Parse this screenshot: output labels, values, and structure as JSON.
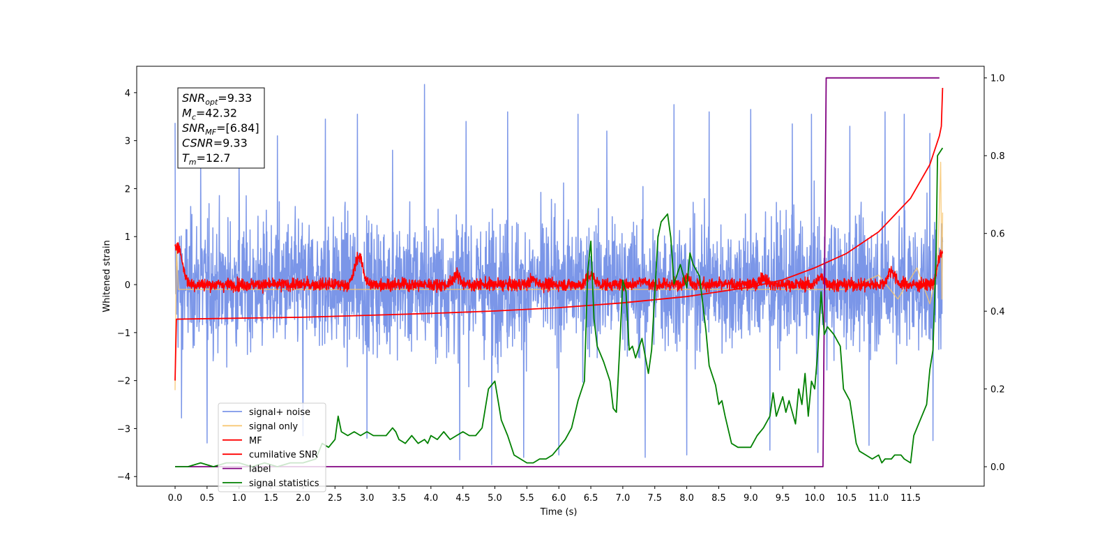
{
  "chart_data": {
    "type": "line",
    "xlabel": "Time (s)",
    "ylabel": "Whitened strain",
    "xlim": [
      -0.6,
      12.65
    ],
    "ylim": [
      -4.2,
      4.55
    ],
    "y2lim": [
      -0.05,
      1.03
    ],
    "x_ticks": [
      "0.0",
      "0.5",
      "1.0",
      "1.5",
      "2.0",
      "2.5",
      "3.0",
      "3.5",
      "4.0",
      "4.5",
      "5.0",
      "5.5",
      "6.0",
      "6.5",
      "7.0",
      "7.5",
      "8.0",
      "8.5",
      "9.0",
      "9.5",
      "10.0",
      "10.5",
      "11.0",
      "11.5"
    ],
    "x_tick_values": [
      0.0,
      0.5,
      1.0,
      1.5,
      2.0,
      2.5,
      3.0,
      3.5,
      4.0,
      4.5,
      5.0,
      5.5,
      6.0,
      6.5,
      7.0,
      7.5,
      8.0,
      8.5,
      9.0,
      9.5,
      10.0,
      10.5,
      11.0,
      11.5
    ],
    "y_ticks": [
      "4",
      "3",
      "2",
      "1",
      "0",
      "−1",
      "−2",
      "−3",
      "−4"
    ],
    "y_tick_values": [
      4,
      3,
      2,
      1,
      0,
      -1,
      -2,
      -3,
      -4
    ],
    "y2_ticks": [
      "1.0",
      "0.8",
      "0.6",
      "0.4",
      "0.2",
      "0.0"
    ],
    "y2_tick_values": [
      1.0,
      0.8,
      0.6,
      0.4,
      0.2,
      0.0
    ],
    "info_box": [
      {
        "sym": "SNR",
        "sub": "opt",
        "rest": "=9.33"
      },
      {
        "sym": "M",
        "sub": "c",
        "rest": "=42.32"
      },
      {
        "sym": "SNR",
        "sub": "MF",
        "rest": "=[6.84]"
      },
      {
        "sym": "CSNR",
        "sub": "",
        "rest": "=9.33"
      },
      {
        "sym": "T",
        "sub": "m",
        "rest": "=12.7"
      }
    ],
    "legend": [
      {
        "label": "signal+ noise",
        "color": "#7b96e8"
      },
      {
        "label": "signal only",
        "color": "#f7c46c"
      },
      {
        "label": "MF",
        "color": "#ff0000"
      },
      {
        "label": "cumilative SNR",
        "color": "#ff0000"
      },
      {
        "label": "label",
        "color": "#800080"
      },
      {
        "label": "signal statistics",
        "color": "#008000"
      }
    ],
    "series": [
      {
        "name": "signal+ noise",
        "axis": "left",
        "color": "#7b96e8",
        "kind": "noise",
        "x_range": [
          0.0,
          12.0
        ],
        "envelope": [
          2.0,
          -2.0
        ],
        "peaks": [
          [
            0.0,
            3.37
          ],
          [
            0.1,
            -2.78
          ],
          [
            0.4,
            2.6
          ],
          [
            0.5,
            -3.3
          ],
          [
            1.0,
            2.65
          ],
          [
            1.6,
            3.1
          ],
          [
            2.0,
            -3.15
          ],
          [
            2.35,
            3.45
          ],
          [
            2.85,
            3.55
          ],
          [
            3.0,
            -3.2
          ],
          [
            3.4,
            2.8
          ],
          [
            3.9,
            4.17
          ],
          [
            4.45,
            -3.65
          ],
          [
            4.55,
            3.4
          ],
          [
            4.95,
            -3.75
          ],
          [
            5.2,
            3.6
          ],
          [
            5.45,
            -3.6
          ],
          [
            6.0,
            -3.55
          ],
          [
            6.3,
            3.55
          ],
          [
            6.75,
            3.2
          ],
          [
            7.35,
            -3.6
          ],
          [
            7.8,
            3.75
          ],
          [
            8.0,
            -3.55
          ],
          [
            8.35,
            3.6
          ],
          [
            9.0,
            3.65
          ],
          [
            9.3,
            -3.45
          ],
          [
            9.65,
            3.35
          ],
          [
            9.95,
            3.55
          ],
          [
            10.05,
            -3.5
          ],
          [
            10.55,
            3.3
          ],
          [
            10.85,
            -3.35
          ],
          [
            11.1,
            3.6
          ],
          [
            11.4,
            3.55
          ],
          [
            11.8,
            3.15
          ],
          [
            11.85,
            -3.25
          ]
        ]
      },
      {
        "name": "signal only",
        "axis": "left",
        "color": "#f7c46c",
        "points": [
          [
            0.0,
            -2.2
          ],
          [
            0.02,
            0.8
          ],
          [
            0.05,
            -0.1
          ],
          [
            10.5,
            -0.1
          ],
          [
            11.0,
            0.2
          ],
          [
            11.3,
            -0.3
          ],
          [
            11.6,
            0.35
          ],
          [
            11.8,
            -0.4
          ],
          [
            11.92,
            0.3
          ],
          [
            11.97,
            2.55
          ],
          [
            11.99,
            -0.3
          ],
          [
            12.0,
            1.5
          ]
        ]
      },
      {
        "name": "MF",
        "axis": "left",
        "color": "#ff0000",
        "kind": "mf",
        "x_range": [
          0.0,
          12.0
        ],
        "bumps": [
          [
            0.02,
            0.85
          ],
          [
            0.1,
            0.45
          ],
          [
            2.85,
            0.5
          ],
          [
            2.9,
            0.45
          ],
          [
            4.4,
            0.35
          ],
          [
            5.6,
            0.25
          ],
          [
            6.5,
            0.35
          ],
          [
            7.3,
            0.25
          ],
          [
            8.0,
            0.3
          ],
          [
            9.2,
            0.3
          ],
          [
            10.1,
            0.3
          ],
          [
            11.2,
            0.45
          ],
          [
            11.98,
            0.8
          ]
        ]
      },
      {
        "name": "cumilative SNR",
        "axis": "left",
        "color": "#ff0000",
        "points": [
          [
            0.0,
            -2.0
          ],
          [
            0.02,
            -0.72
          ],
          [
            1.0,
            -0.7
          ],
          [
            2.0,
            -0.68
          ],
          [
            3.0,
            -0.64
          ],
          [
            4.0,
            -0.6
          ],
          [
            5.0,
            -0.55
          ],
          [
            6.0,
            -0.48
          ],
          [
            7.0,
            -0.38
          ],
          [
            8.0,
            -0.25
          ],
          [
            9.0,
            -0.05
          ],
          [
            9.5,
            0.1
          ],
          [
            10.0,
            0.35
          ],
          [
            10.5,
            0.65
          ],
          [
            11.0,
            1.1
          ],
          [
            11.5,
            1.8
          ],
          [
            11.8,
            2.5
          ],
          [
            11.95,
            3.1
          ],
          [
            11.98,
            3.3
          ],
          [
            12.0,
            4.1
          ]
        ]
      },
      {
        "name": "label",
        "axis": "right",
        "color": "#800080",
        "points": [
          [
            0.0,
            0.0
          ],
          [
            10.13,
            0.0
          ],
          [
            10.18,
            1.0
          ],
          [
            11.95,
            1.0
          ]
        ]
      },
      {
        "name": "signal statistics",
        "axis": "right",
        "color": "#008000",
        "points": [
          [
            0.0,
            0.0
          ],
          [
            0.2,
            0.0
          ],
          [
            0.4,
            0.01
          ],
          [
            0.6,
            0.0
          ],
          [
            0.8,
            0.01
          ],
          [
            1.0,
            0.01
          ],
          [
            1.2,
            0.0
          ],
          [
            1.4,
            0.01
          ],
          [
            1.6,
            0.0
          ],
          [
            1.8,
            0.01
          ],
          [
            2.0,
            0.01
          ],
          [
            2.2,
            0.02
          ],
          [
            2.3,
            0.06
          ],
          [
            2.4,
            0.05
          ],
          [
            2.5,
            0.07
          ],
          [
            2.55,
            0.13
          ],
          [
            2.6,
            0.09
          ],
          [
            2.7,
            0.08
          ],
          [
            2.8,
            0.09
          ],
          [
            2.9,
            0.08
          ],
          [
            3.0,
            0.09
          ],
          [
            3.1,
            0.08
          ],
          [
            3.3,
            0.08
          ],
          [
            3.4,
            0.1
          ],
          [
            3.45,
            0.09
          ],
          [
            3.5,
            0.07
          ],
          [
            3.6,
            0.06
          ],
          [
            3.7,
            0.08
          ],
          [
            3.8,
            0.06
          ],
          [
            3.9,
            0.07
          ],
          [
            3.95,
            0.06
          ],
          [
            4.0,
            0.08
          ],
          [
            4.1,
            0.07
          ],
          [
            4.2,
            0.09
          ],
          [
            4.3,
            0.07
          ],
          [
            4.4,
            0.08
          ],
          [
            4.5,
            0.09
          ],
          [
            4.6,
            0.08
          ],
          [
            4.7,
            0.08
          ],
          [
            4.8,
            0.1
          ],
          [
            4.9,
            0.2
          ],
          [
            5.0,
            0.22
          ],
          [
            5.1,
            0.12
          ],
          [
            5.2,
            0.08
          ],
          [
            5.3,
            0.03
          ],
          [
            5.4,
            0.02
          ],
          [
            5.5,
            0.01
          ],
          [
            5.6,
            0.01
          ],
          [
            5.7,
            0.02
          ],
          [
            5.8,
            0.02
          ],
          [
            5.9,
            0.03
          ],
          [
            6.0,
            0.05
          ],
          [
            6.1,
            0.07
          ],
          [
            6.2,
            0.1
          ],
          [
            6.3,
            0.17
          ],
          [
            6.4,
            0.22
          ],
          [
            6.45,
            0.5
          ],
          [
            6.5,
            0.58
          ],
          [
            6.55,
            0.38
          ],
          [
            6.6,
            0.31
          ],
          [
            6.7,
            0.27
          ],
          [
            6.8,
            0.22
          ],
          [
            6.85,
            0.15
          ],
          [
            6.9,
            0.14
          ],
          [
            6.95,
            0.3
          ],
          [
            7.0,
            0.48
          ],
          [
            7.05,
            0.45
          ],
          [
            7.1,
            0.3
          ],
          [
            7.15,
            0.31
          ],
          [
            7.2,
            0.28
          ],
          [
            7.3,
            0.33
          ],
          [
            7.4,
            0.24
          ],
          [
            7.45,
            0.3
          ],
          [
            7.55,
            0.59
          ],
          [
            7.6,
            0.63
          ],
          [
            7.7,
            0.65
          ],
          [
            7.75,
            0.59
          ],
          [
            7.8,
            0.47
          ],
          [
            7.9,
            0.52
          ],
          [
            8.0,
            0.46
          ],
          [
            8.05,
            0.55
          ],
          [
            8.1,
            0.52
          ],
          [
            8.2,
            0.49
          ],
          [
            8.3,
            0.35
          ],
          [
            8.35,
            0.26
          ],
          [
            8.45,
            0.21
          ],
          [
            8.5,
            0.16
          ],
          [
            8.55,
            0.17
          ],
          [
            8.6,
            0.13
          ],
          [
            8.7,
            0.06
          ],
          [
            8.8,
            0.05
          ],
          [
            8.9,
            0.05
          ],
          [
            9.0,
            0.05
          ],
          [
            9.1,
            0.08
          ],
          [
            9.2,
            0.1
          ],
          [
            9.3,
            0.13
          ],
          [
            9.35,
            0.19
          ],
          [
            9.4,
            0.13
          ],
          [
            9.5,
            0.18
          ],
          [
            9.55,
            0.14
          ],
          [
            9.6,
            0.17
          ],
          [
            9.7,
            0.11
          ],
          [
            9.75,
            0.2
          ],
          [
            9.8,
            0.16
          ],
          [
            9.85,
            0.24
          ],
          [
            9.9,
            0.13
          ],
          [
            9.95,
            0.22
          ],
          [
            10.0,
            0.2
          ],
          [
            10.05,
            0.3
          ],
          [
            10.1,
            0.45
          ],
          [
            10.15,
            0.34
          ],
          [
            10.2,
            0.36
          ],
          [
            10.3,
            0.34
          ],
          [
            10.4,
            0.31
          ],
          [
            10.45,
            0.2
          ],
          [
            10.55,
            0.17
          ],
          [
            10.65,
            0.06
          ],
          [
            10.7,
            0.04
          ],
          [
            10.8,
            0.03
          ],
          [
            10.9,
            0.02
          ],
          [
            11.0,
            0.03
          ],
          [
            11.05,
            0.01
          ],
          [
            11.1,
            0.02
          ],
          [
            11.2,
            0.02
          ],
          [
            11.25,
            0.03
          ],
          [
            11.35,
            0.03
          ],
          [
            11.4,
            0.02
          ],
          [
            11.5,
            0.01
          ],
          [
            11.55,
            0.08
          ],
          [
            11.65,
            0.12
          ],
          [
            11.75,
            0.16
          ],
          [
            11.8,
            0.25
          ],
          [
            11.85,
            0.3
          ],
          [
            11.9,
            0.56
          ],
          [
            11.92,
            0.8
          ],
          [
            12.0,
            0.82
          ]
        ]
      }
    ]
  }
}
